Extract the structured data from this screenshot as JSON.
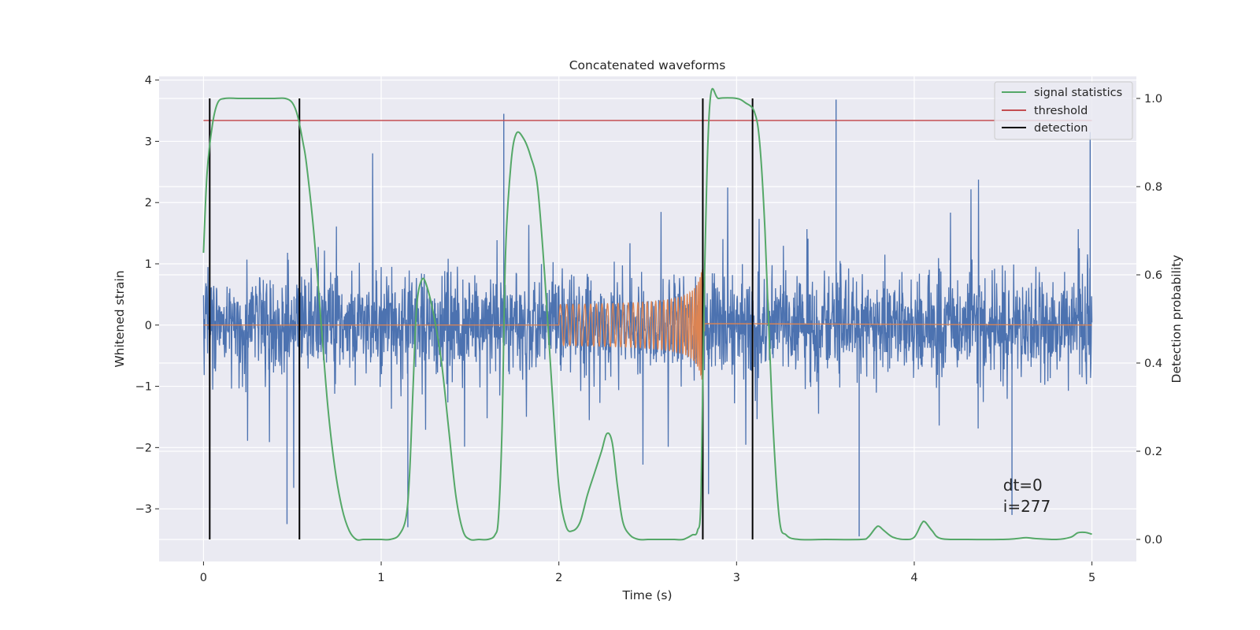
{
  "chart_data": {
    "type": "line",
    "title": "Concatenated waveforms",
    "xlabel": "Time (s)",
    "ylabel": "Whitened strain",
    "y2label": "Detection probability",
    "xlim": [
      -0.25,
      5.25
    ],
    "ylim": [
      -3.86,
      4.06
    ],
    "y2lim": [
      -0.05,
      1.05
    ],
    "x_ticks": [
      0,
      1,
      2,
      3,
      4,
      5
    ],
    "y_ticks": [
      -3,
      -2,
      -1,
      0,
      1,
      2,
      3,
      4
    ],
    "y2_ticks": [
      0.0,
      0.2,
      0.4,
      0.6,
      0.8,
      1.0
    ],
    "x_tick_labels": [
      "0",
      "1",
      "2",
      "3",
      "4",
      "5"
    ],
    "y_tick_labels": [
      "−3",
      "−2",
      "−1",
      "0",
      "1",
      "2",
      "3",
      "4"
    ],
    "y2_tick_labels": [
      "0.0",
      "0.2",
      "0.4",
      "0.6",
      "0.8",
      "1.0"
    ],
    "grid": true,
    "legend_position": "top-right",
    "colors": {
      "strain": "#4c72b0",
      "template": "#dd8452",
      "signal_statistics": "#55a868",
      "threshold": "#c44e52",
      "detection": "#000000",
      "axes_bg": "#eaeaf2",
      "grid": "#ffffff"
    },
    "series": [
      {
        "name": "",
        "kind": "noise",
        "axis": "left",
        "x_range": [
          0,
          5
        ],
        "spike_extent": [
          -3.5,
          3.7
        ],
        "typical_extent": [
          -2.2,
          2.4
        ]
      },
      {
        "name": "",
        "kind": "chirp",
        "axis": "left",
        "x_range": [
          2.0,
          2.82
        ],
        "amplitude_start": 0.3,
        "amplitude_peak": 1.0,
        "merger_time": 2.81
      },
      {
        "name": "signal statistics",
        "kind": "line",
        "axis": "right",
        "x": [
          0,
          0.02,
          0.05,
          0.08,
          0.12,
          0.2,
          0.3,
          0.4,
          0.46,
          0.5,
          0.53,
          0.56,
          0.58,
          0.62,
          0.66,
          0.7,
          0.74,
          0.78,
          0.82,
          0.86,
          0.9,
          0.95,
          1.0,
          1.05,
          1.1,
          1.14,
          1.16,
          1.18,
          1.2,
          1.23,
          1.26,
          1.3,
          1.34,
          1.38,
          1.42,
          1.46,
          1.5,
          1.55,
          1.6,
          1.64,
          1.66,
          1.68,
          1.7,
          1.73,
          1.76,
          1.8,
          1.84,
          1.88,
          1.92,
          1.96,
          2.0,
          2.04,
          2.08,
          2.12,
          2.16,
          2.2,
          2.24,
          2.27,
          2.3,
          2.33,
          2.36,
          2.4,
          2.45,
          2.5,
          2.55,
          2.6,
          2.65,
          2.7,
          2.75,
          2.78,
          2.8,
          2.82,
          2.85,
          2.9,
          3.0,
          3.05,
          3.1,
          3.13,
          3.16,
          3.2,
          3.24,
          3.28,
          3.35,
          3.5,
          3.7,
          3.74,
          3.78,
          3.8,
          3.83,
          3.88,
          3.95,
          4.0,
          4.04,
          4.06,
          4.1,
          4.15,
          4.3,
          4.5,
          4.58,
          4.63,
          4.68,
          4.8,
          4.88,
          4.92,
          4.96,
          5.0
        ],
        "y": [
          0.65,
          0.83,
          0.94,
          0.99,
          1.0,
          1.0,
          1.0,
          1.0,
          1.0,
          0.99,
          0.96,
          0.9,
          0.85,
          0.7,
          0.5,
          0.3,
          0.16,
          0.07,
          0.02,
          0.0,
          0.0,
          0.0,
          0.0,
          0.0,
          0.01,
          0.05,
          0.15,
          0.35,
          0.53,
          0.59,
          0.57,
          0.5,
          0.4,
          0.25,
          0.1,
          0.02,
          0.0,
          0.0,
          0.0,
          0.01,
          0.05,
          0.25,
          0.65,
          0.85,
          0.92,
          0.91,
          0.87,
          0.8,
          0.6,
          0.35,
          0.12,
          0.03,
          0.02,
          0.04,
          0.1,
          0.15,
          0.2,
          0.24,
          0.22,
          0.12,
          0.04,
          0.01,
          0.0,
          0.0,
          0.0,
          0.0,
          0.0,
          0.0,
          0.01,
          0.02,
          0.1,
          0.6,
          0.99,
          1.0,
          1.0,
          0.99,
          0.97,
          0.9,
          0.7,
          0.3,
          0.05,
          0.01,
          0.0,
          0.0,
          0.0,
          0.005,
          0.025,
          0.03,
          0.02,
          0.005,
          0.0,
          0.005,
          0.035,
          0.04,
          0.02,
          0.002,
          0.0,
          0.0,
          0.002,
          0.004,
          0.002,
          0.0,
          0.005,
          0.015,
          0.016,
          0.012
        ]
      },
      {
        "name": "threshold",
        "kind": "hline",
        "axis": "right",
        "value": 0.95,
        "x_range": [
          0,
          5
        ]
      },
      {
        "name": "detection",
        "kind": "vlines",
        "axis": "right",
        "x": [
          0.035,
          0.54,
          2.81,
          3.09
        ],
        "y_range": [
          0,
          1
        ]
      }
    ],
    "annotation": {
      "lines": [
        "dt=0",
        "i=277"
      ],
      "x": 4.5,
      "y_line1": -2.7,
      "y_line2": -3.05
    }
  }
}
